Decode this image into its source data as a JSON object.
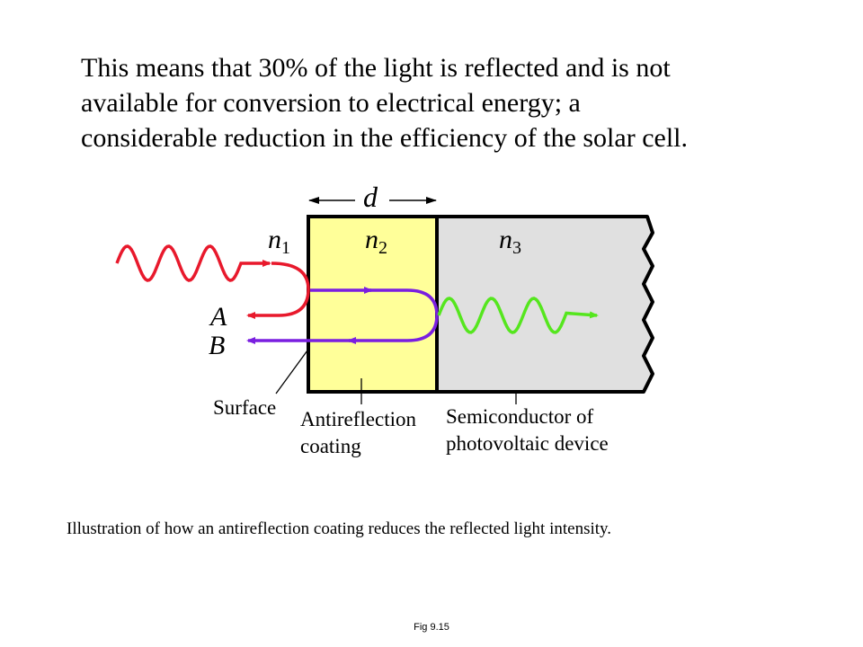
{
  "heading_lines": [
    "This means that 30% of the light is reflected and is not",
    "available for conversion to electrical energy; a",
    "considerable reduction in the efficiency of the solar cell."
  ],
  "diagram": {
    "thickness_label": "d",
    "n1": {
      "base": "n",
      "sub": "1"
    },
    "n2": {
      "base": "n",
      "sub": "2"
    },
    "n3": {
      "base": "n",
      "sub": "3"
    },
    "ray_a_label": "A",
    "ray_b_label": "B",
    "surface_label": "Surface",
    "coating_label": [
      "Antireflection",
      "coating"
    ],
    "semiconductor_label": [
      "Semiconductor of",
      "photovoltaic device"
    ],
    "colors": {
      "incident_wave": "#e8192c",
      "coating_fill": "#ffff99",
      "semiconductor_fill": "#e0e0e0",
      "reflected_b": "#7a1fe0",
      "transmitted_wave": "#55e61e"
    }
  },
  "caption": "Illustration of how an antireflection coating reduces the reflected light intensity.",
  "figure_label": "Fig 9.15"
}
